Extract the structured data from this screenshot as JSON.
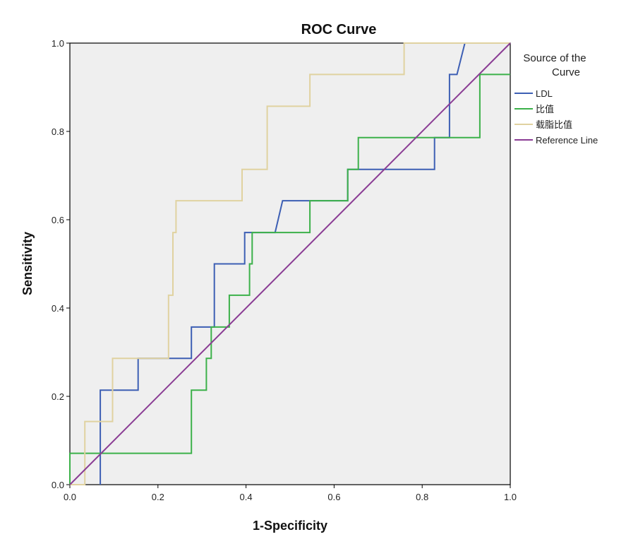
{
  "chart_data": {
    "type": "line",
    "title": "ROC Curve",
    "xlabel": "1-Specificity",
    "ylabel": "Sensitivity",
    "xlim": [
      0,
      1
    ],
    "ylim": [
      0,
      1
    ],
    "x_ticks": [
      "0.0",
      "0.2",
      "0.4",
      "0.6",
      "0.8",
      "1.0"
    ],
    "y_ticks": [
      "0.0",
      "0.2",
      "0.4",
      "0.6",
      "0.8",
      "1.0"
    ],
    "legend": {
      "title_line1": "Source of the",
      "title_line2": "Curve",
      "position": "right"
    },
    "series": [
      {
        "name": "LDL",
        "color": "#3d5fb4",
        "points": [
          [
            0.069,
            0.0
          ],
          [
            0.069,
            0.214
          ],
          [
            0.155,
            0.214
          ],
          [
            0.155,
            0.286
          ],
          [
            0.276,
            0.286
          ],
          [
            0.276,
            0.357
          ],
          [
            0.328,
            0.357
          ],
          [
            0.328,
            0.5
          ],
          [
            0.397,
            0.5
          ],
          [
            0.397,
            0.571
          ],
          [
            0.466,
            0.571
          ],
          [
            0.483,
            0.643
          ],
          [
            0.631,
            0.643
          ],
          [
            0.631,
            0.714
          ],
          [
            0.828,
            0.714
          ],
          [
            0.828,
            0.786
          ],
          [
            0.862,
            0.786
          ],
          [
            0.862,
            0.929
          ],
          [
            0.879,
            0.929
          ],
          [
            0.897,
            1.0
          ],
          [
            1.0,
            1.0
          ]
        ]
      },
      {
        "name": "比值",
        "color": "#3cb14a",
        "points": [
          [
            0.0,
            0.0
          ],
          [
            0.0,
            0.071
          ],
          [
            0.276,
            0.071
          ],
          [
            0.276,
            0.214
          ],
          [
            0.31,
            0.214
          ],
          [
            0.31,
            0.286
          ],
          [
            0.321,
            0.286
          ],
          [
            0.321,
            0.357
          ],
          [
            0.362,
            0.357
          ],
          [
            0.362,
            0.429
          ],
          [
            0.408,
            0.429
          ],
          [
            0.408,
            0.5
          ],
          [
            0.414,
            0.5
          ],
          [
            0.414,
            0.571
          ],
          [
            0.545,
            0.571
          ],
          [
            0.545,
            0.643
          ],
          [
            0.631,
            0.643
          ],
          [
            0.631,
            0.714
          ],
          [
            0.655,
            0.714
          ],
          [
            0.655,
            0.786
          ],
          [
            0.931,
            0.786
          ],
          [
            0.931,
            0.929
          ],
          [
            1.0,
            0.929
          ]
        ]
      },
      {
        "name": "载脂比值",
        "color": "#e0d2a0",
        "points": [
          [
            0.0,
            0.0
          ],
          [
            0.034,
            0.0
          ],
          [
            0.034,
            0.143
          ],
          [
            0.097,
            0.143
          ],
          [
            0.097,
            0.286
          ],
          [
            0.224,
            0.286
          ],
          [
            0.224,
            0.429
          ],
          [
            0.234,
            0.429
          ],
          [
            0.234,
            0.571
          ],
          [
            0.241,
            0.571
          ],
          [
            0.241,
            0.643
          ],
          [
            0.391,
            0.643
          ],
          [
            0.391,
            0.714
          ],
          [
            0.448,
            0.714
          ],
          [
            0.448,
            0.857
          ],
          [
            0.545,
            0.857
          ],
          [
            0.545,
            0.929
          ],
          [
            0.759,
            0.929
          ],
          [
            0.759,
            1.0
          ],
          [
            1.0,
            1.0
          ]
        ]
      },
      {
        "name": "Reference Line",
        "color": "#8a3c94",
        "points": [
          [
            0.0,
            0.0
          ],
          [
            1.0,
            1.0
          ]
        ]
      }
    ]
  }
}
